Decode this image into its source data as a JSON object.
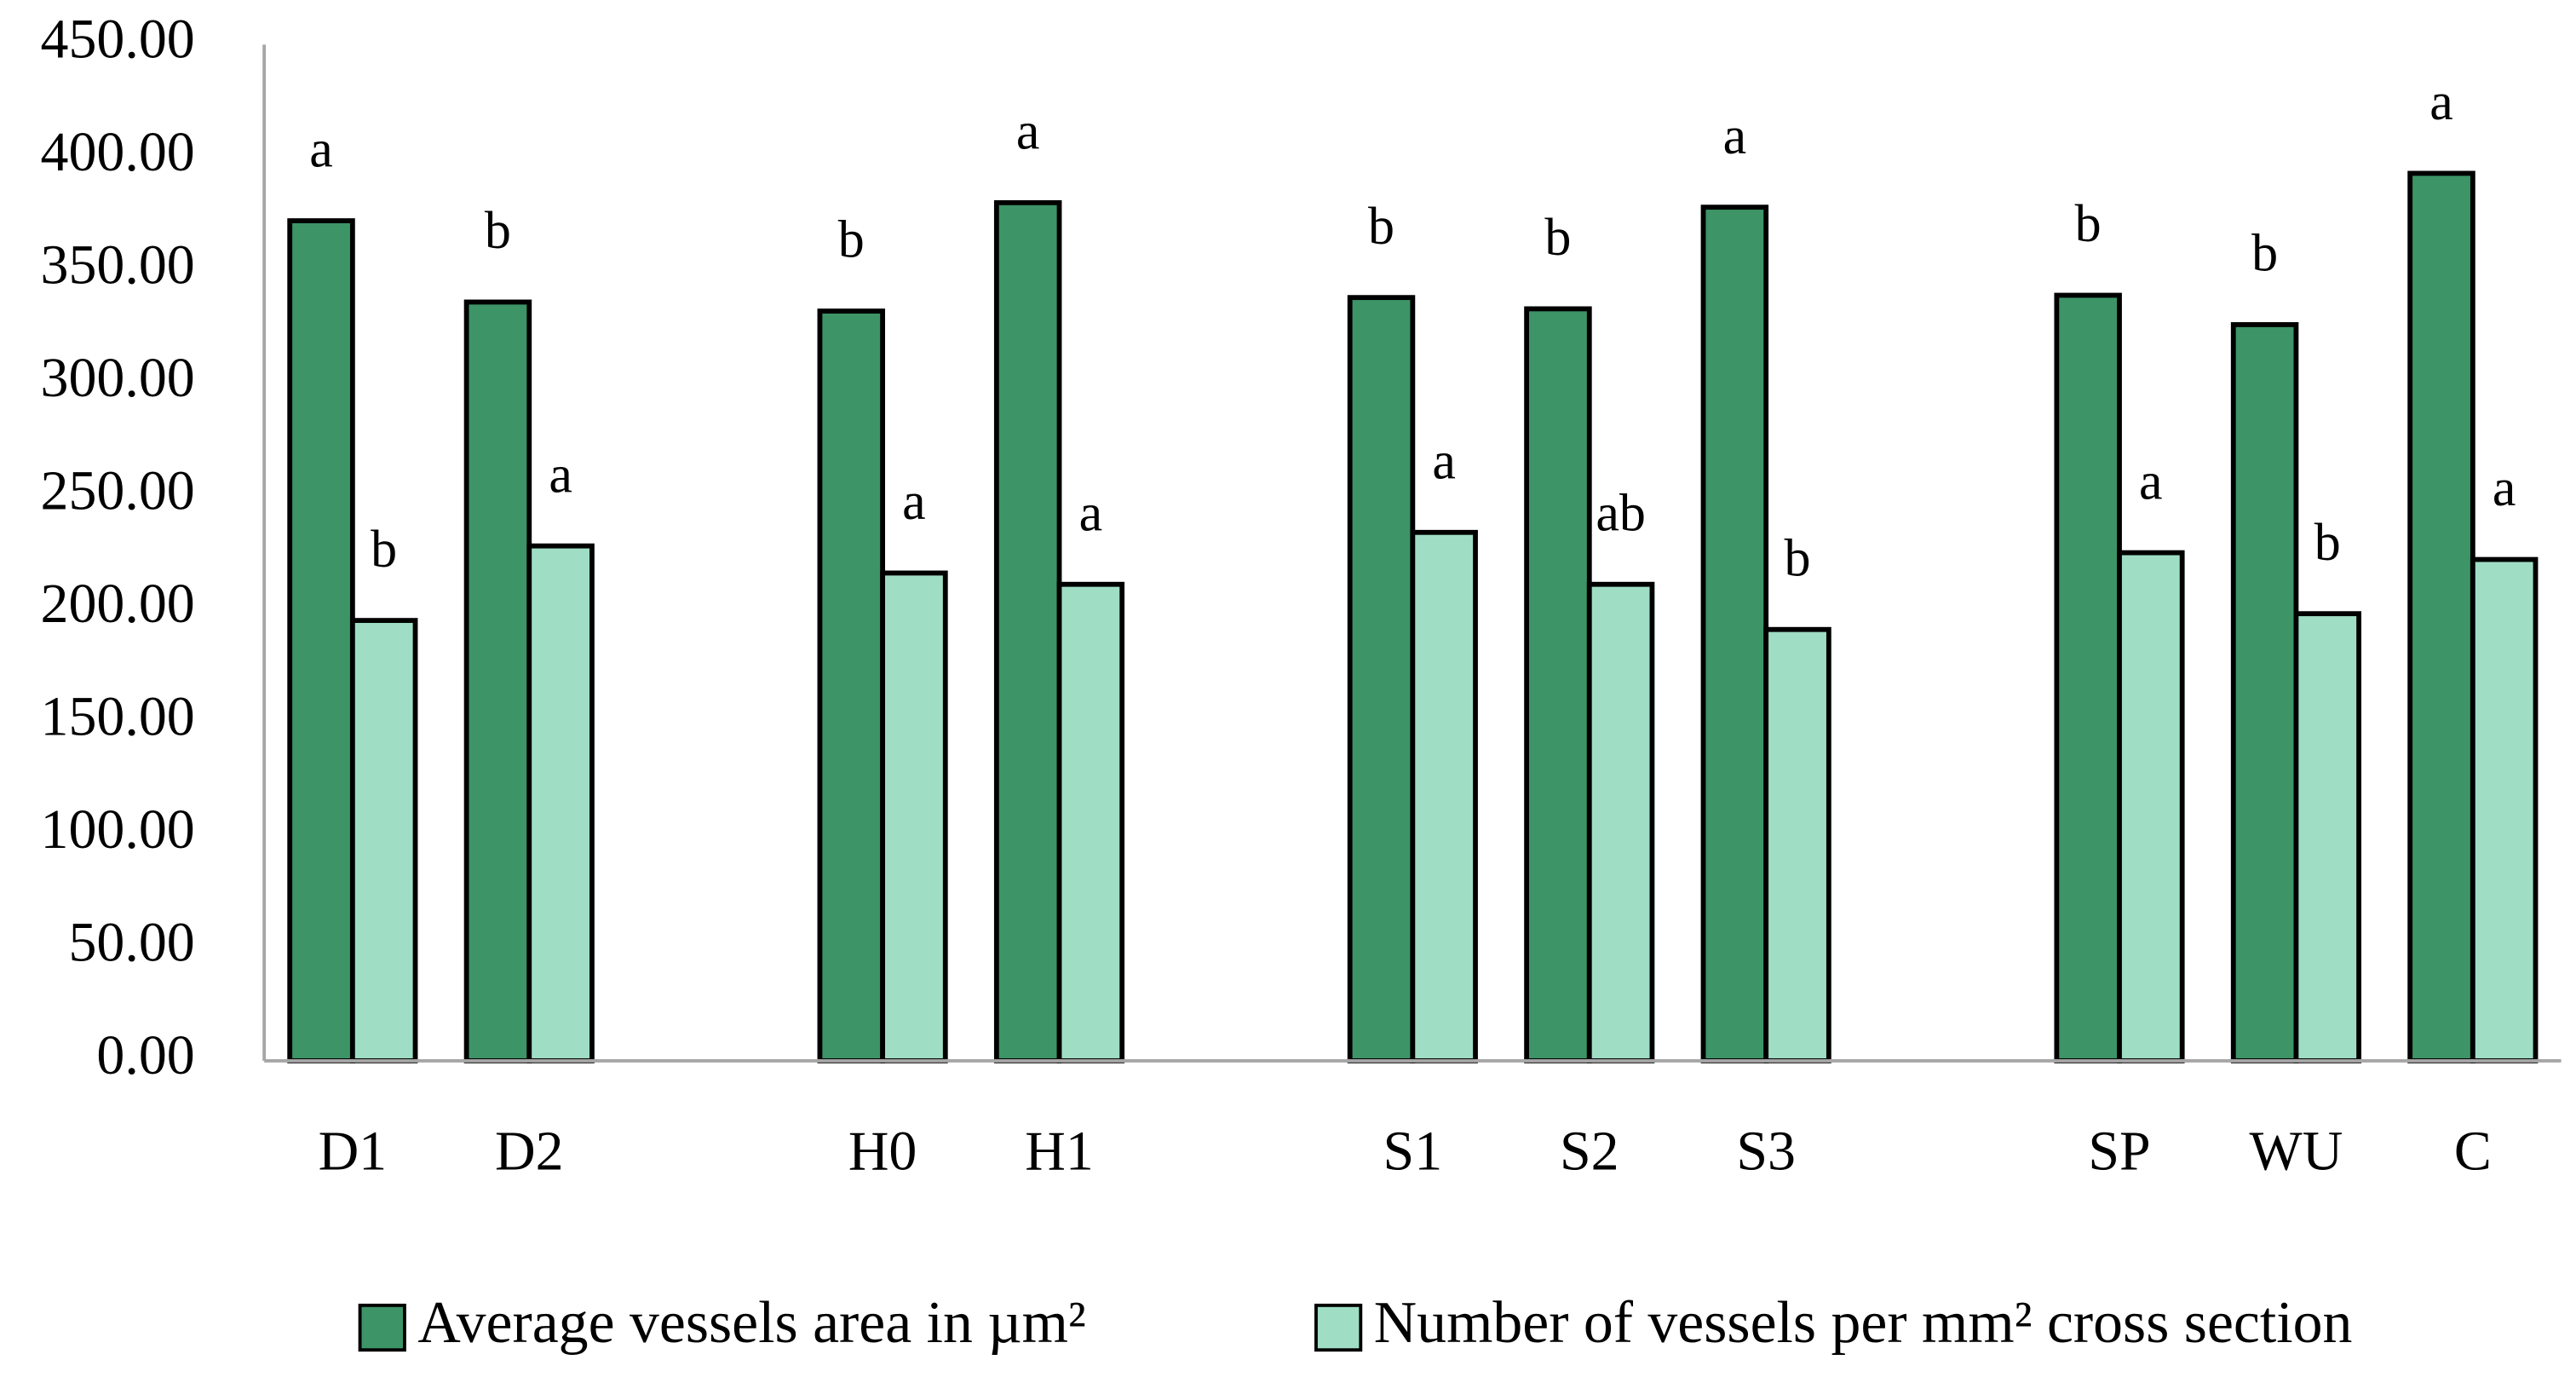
{
  "chart_data": {
    "type": "bar",
    "categories": [
      "D1",
      "D2",
      null,
      "H0",
      "H1",
      null,
      "S1",
      "S2",
      "S3",
      null,
      "SP",
      "WU",
      "C"
    ],
    "series": [
      {
        "name": "Average vessels area in µm²",
        "color": "#3d9467",
        "values": [
          372,
          336,
          null,
          332,
          380,
          null,
          338,
          333,
          378,
          null,
          339,
          326,
          393
        ],
        "letters": [
          "a",
          "b",
          null,
          "b",
          "a",
          null,
          "b",
          "b",
          "a",
          null,
          "b",
          "b",
          "a"
        ]
      },
      {
        "name": "Number of vessels per mm² cross section",
        "color": "#9fdec4",
        "values": [
          195,
          228,
          null,
          216,
          211,
          null,
          234,
          211,
          191,
          null,
          225,
          198,
          222
        ],
        "letters": [
          "b",
          "a",
          null,
          "a",
          "a",
          null,
          "a",
          "ab",
          "b",
          null,
          "a",
          "b",
          "a"
        ]
      }
    ],
    "ylim": [
      0,
      450
    ],
    "yticks": [
      {
        "value": 0,
        "label": "0.00"
      },
      {
        "value": 50,
        "label": "50.00"
      },
      {
        "value": 100,
        "label": "100.00"
      },
      {
        "value": 150,
        "label": "150.00"
      },
      {
        "value": 200,
        "label": "200.00"
      },
      {
        "value": 250,
        "label": "250.00"
      },
      {
        "value": 300,
        "label": "300.00"
      },
      {
        "value": 350,
        "label": "350.00"
      },
      {
        "value": 400,
        "label": "400.00"
      },
      {
        "value": 450,
        "label": "450.00"
      }
    ],
    "grid": false,
    "legend": "bottom"
  }
}
